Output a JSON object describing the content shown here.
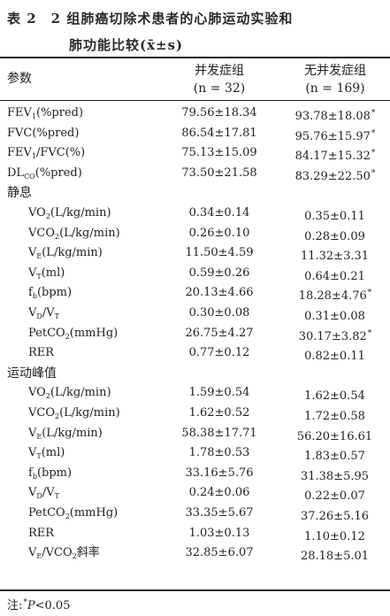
{
  "caption": {
    "line1": "表 2　2 组肺癌切除术患者的心肺运动实验和",
    "line2": "肺功能比较(x̄±s)"
  },
  "header": {
    "param": "参数",
    "col1_title": "并发症组",
    "col1_n": "(n = 32)",
    "col2_title": "无并发症组",
    "col2_n": "(n = 169)"
  },
  "rows": [
    {
      "label": "FEV",
      "sub": "1",
      "label_rest": "(%pred)",
      "v1": "79.56±18.34",
      "v2": "93.78±18.08",
      "star": "*"
    },
    {
      "label": "FVC(%pred)",
      "sub": "",
      "label_rest": "",
      "v1": "86.54±17.81",
      "v2": "95.76±15.97",
      "star": "*"
    },
    {
      "label": "FEV",
      "sub": "1",
      "label_rest": "/FVC(%)",
      "v1": "75.13±15.09",
      "v2": "84.17±15.32",
      "star": "*"
    },
    {
      "label": "DL",
      "sub": "CO",
      "label_rest": "(%pred)",
      "v1": "73.50±21.58",
      "v2": "83.29±22.50",
      "star": "*"
    }
  ],
  "section_rest": {
    "title": "静息",
    "rows": [
      {
        "label": "VO",
        "sub": "2",
        "label_rest": "(L/kg/min)",
        "v1": "0.34±0.14",
        "v2": "0.35±0.11",
        "star": ""
      },
      {
        "label": "VCO",
        "sub": "2",
        "label_rest": "(L/kg/min)",
        "v1": "0.26±0.10",
        "v2": "0.28±0.09",
        "star": ""
      },
      {
        "label": "V",
        "sub": "E",
        "label_rest": "(L/kg/min)",
        "v1": "11.50±4.59",
        "v2": "11.32±3.31",
        "star": ""
      },
      {
        "label": "V",
        "sub": "T",
        "label_rest": "(ml)",
        "v1": "0.59±0.26",
        "v2": "0.64±0.21",
        "star": ""
      },
      {
        "label": "f",
        "sub": "b",
        "label_rest": "(bpm)",
        "v1": "20.13±4.66",
        "v2": "18.28±4.76",
        "star": "*"
      },
      {
        "label": "V",
        "sub": "D",
        "label_rest": "/V",
        "sub2": "T",
        "v1": "0.30±0.08",
        "v2": "0.31±0.08",
        "star": ""
      },
      {
        "label": "PetCO",
        "sub": "2",
        "label_rest": "(mmHg)",
        "v1": "26.75±4.27",
        "v2": "30.17±3.82",
        "star": "*"
      },
      {
        "label": "RER",
        "sub": "",
        "label_rest": "",
        "v1": "0.77±0.12",
        "v2": "0.82±0.11",
        "star": ""
      }
    ]
  },
  "section_peak": {
    "title": "运动峰值",
    "rows": [
      {
        "label": "VO",
        "sub": "2",
        "label_rest": "(L/kg/min)",
        "v1": "1.59±0.54",
        "v2": "1.62±0.54",
        "star": ""
      },
      {
        "label": "VCO",
        "sub": "2",
        "label_rest": "(L/kg/min)",
        "v1": "1.62±0.52",
        "v2": "1.72±0.58",
        "star": ""
      },
      {
        "label": "V",
        "sub": "E",
        "label_rest": "(L/kg/min)",
        "v1": "58.38±17.71",
        "v2": "56.20±16.61",
        "star": ""
      },
      {
        "label": "V",
        "sub": "T",
        "label_rest": "(ml)",
        "v1": "1.78±0.53",
        "v2": "1.83±0.57",
        "star": ""
      },
      {
        "label": "f",
        "sub": "b",
        "label_rest": "(bpm)",
        "v1": "33.16±5.76",
        "v2": "31.38±5.95",
        "star": ""
      },
      {
        "label": "V",
        "sub": "D",
        "label_rest": "/V",
        "sub2": "T",
        "v1": "0.24±0.06",
        "v2": "0.22±0.07",
        "star": ""
      },
      {
        "label": "PetCO",
        "sub": "2",
        "label_rest": "(mmHg)",
        "v1": "33.35±5.67",
        "v2": "37.26±5.16",
        "star": ""
      },
      {
        "label": "RER",
        "sub": "",
        "label_rest": "",
        "v1": "1.03±0.13",
        "v2": "1.10±0.12",
        "star": ""
      },
      {
        "label": "V",
        "sub": "E",
        "label_rest": "/VCO",
        "sub2": "2",
        "label_tail": "斜率",
        "v1": "32.85±6.07",
        "v2": "28.18±5.01",
        "star": ""
      }
    ]
  },
  "footnote": {
    "prefix": "注:",
    "star": "*",
    "text_italic": "P",
    "text": "<0.05"
  }
}
